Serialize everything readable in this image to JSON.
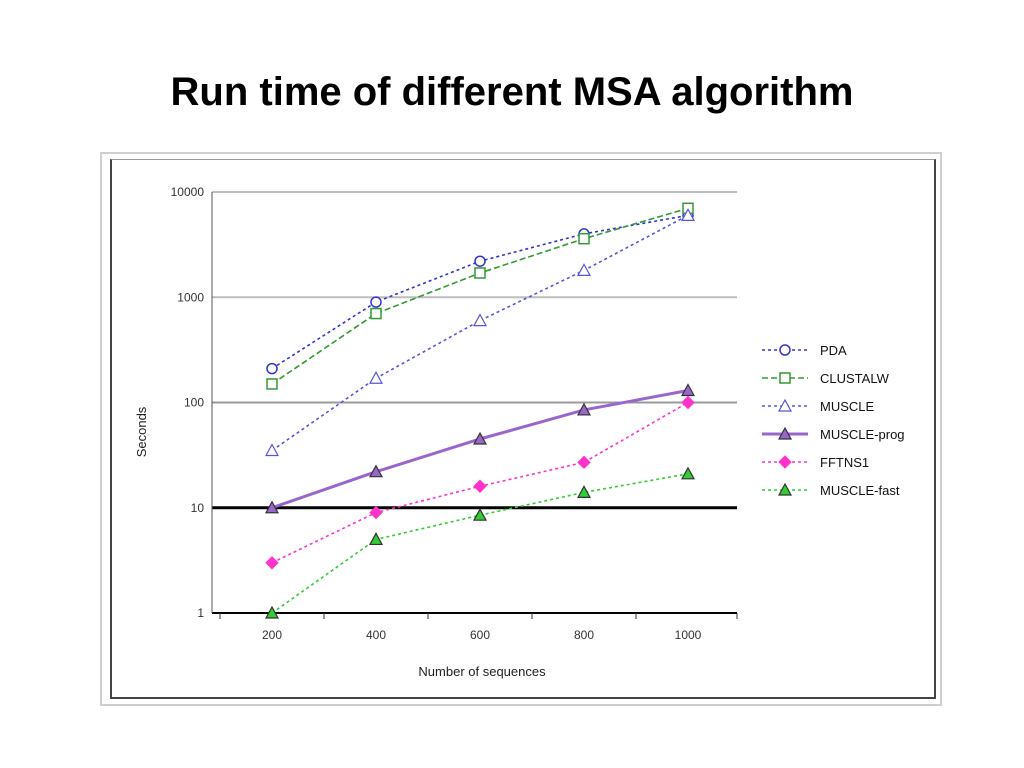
{
  "slide": {
    "title": "Run time of different MSA algorithm"
  },
  "chart_data": {
    "type": "line",
    "title": "",
    "xlabel": "Number of sequences",
    "ylabel": "Seconds",
    "yscale": "log",
    "ylim": [
      1,
      10000
    ],
    "yticks": [
      1,
      10,
      100,
      1000,
      10000
    ],
    "ytick_labels": [
      "1",
      "10",
      "100",
      "1000",
      "10000"
    ],
    "categories": [
      "200",
      "400",
      "600",
      "800",
      "1000"
    ],
    "legend_position": "right",
    "grid": "horizontal",
    "series": [
      {
        "name": "PDA",
        "color": "#3333cc",
        "dash": "dotted",
        "marker": "circle-open",
        "values": [
          210,
          900,
          2200,
          4000,
          6000
        ]
      },
      {
        "name": "CLUSTALW",
        "color": "#339933",
        "dash": "dashed",
        "marker": "square-open",
        "values": [
          150,
          700,
          1700,
          3600,
          7000
        ]
      },
      {
        "name": "MUSCLE",
        "color": "#5555dd",
        "dash": "dotted",
        "marker": "triangle-open",
        "values": [
          35,
          170,
          600,
          1800,
          6000
        ]
      },
      {
        "name": "MUSCLE-prog",
        "color": "#9966cc",
        "dash": "solid",
        "marker": "triangle-filled",
        "values": [
          10,
          22,
          45,
          85,
          130
        ]
      },
      {
        "name": "FFTNS1",
        "color": "#ff33cc",
        "dash": "dotted",
        "marker": "diamond-filled",
        "values": [
          3,
          9,
          16,
          27,
          100
        ]
      },
      {
        "name": "MUSCLE-fast",
        "color": "#33cc33",
        "dash": "dotted",
        "marker": "triangle-filled",
        "values": [
          1,
          5,
          8.5,
          14,
          21
        ]
      }
    ]
  }
}
